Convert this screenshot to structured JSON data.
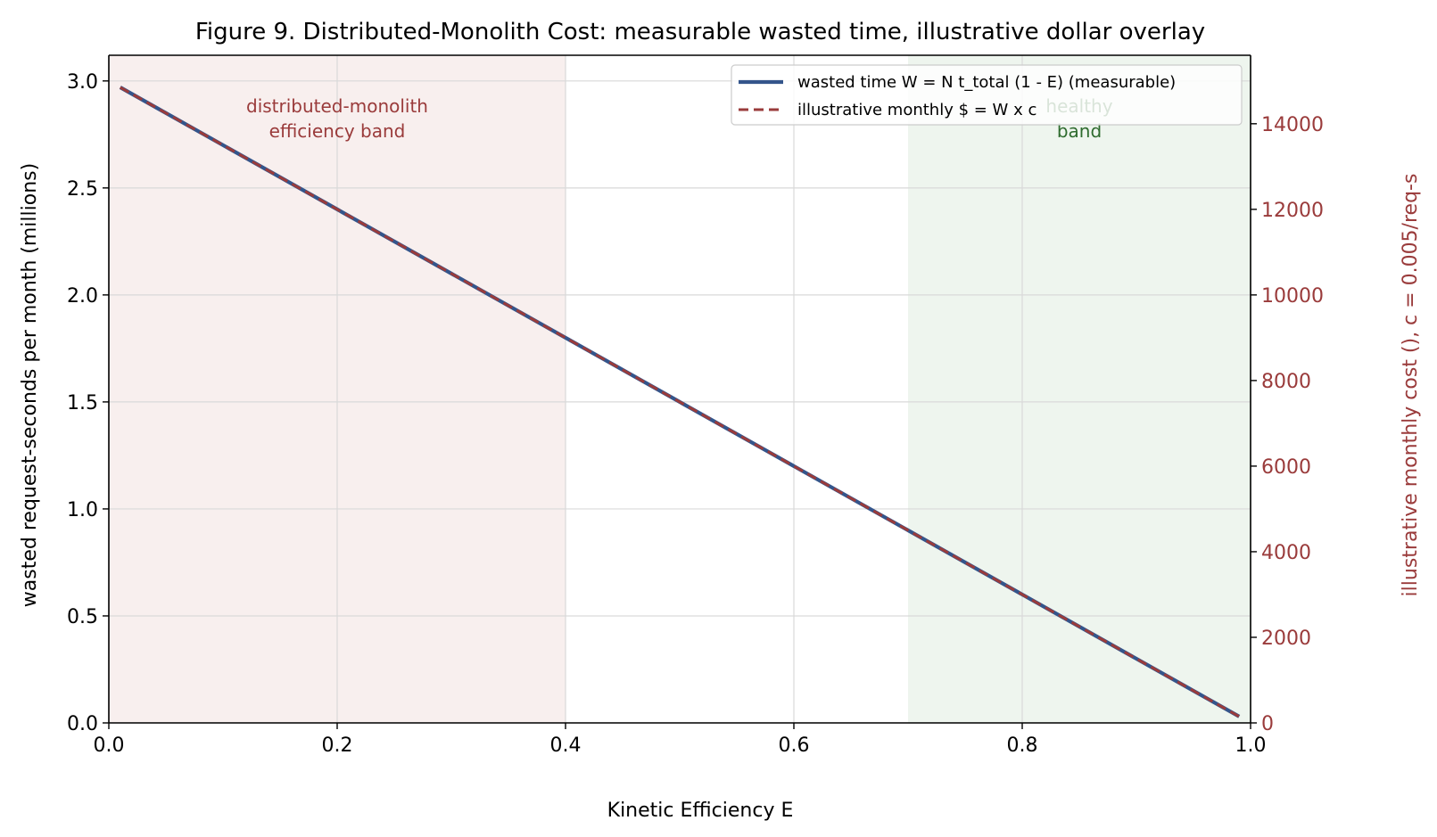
{
  "chart_data": {
    "type": "line",
    "title": "Figure 9. Distributed-Monolith Cost: measurable wasted time, illustrative dollar overlay",
    "xlabel": "Kinetic Efficiency E",
    "ylabel": "wasted request-seconds per month (millions)",
    "y2label": "illustrative monthly cost (), c = 0.005/req-s",
    "xlim": [
      0.0,
      1.0
    ],
    "ylim": [
      0.0,
      3.12
    ],
    "y2lim": [
      0,
      15600
    ],
    "xticks": [
      "0.0",
      "0.2",
      "0.4",
      "0.6",
      "0.8",
      "1.0"
    ],
    "yticks": [
      "0.0",
      "0.5",
      "1.0",
      "1.5",
      "2.0",
      "2.5",
      "3.0"
    ],
    "y2ticks": [
      "0",
      "2000",
      "4000",
      "6000",
      "8000",
      "10000",
      "12000",
      "14000"
    ],
    "grid": true,
    "legend_position": "top-right",
    "bands": [
      {
        "label_line1": "distributed-monolith",
        "label_line2": "efficiency band",
        "x": [
          0.0,
          0.4
        ],
        "color": "#f8efee",
        "text_color": "#9a3b3b"
      },
      {
        "label_line1": "healthy",
        "label_line2": "band",
        "x": [
          0.7,
          1.0
        ],
        "color": "#eef5ee",
        "text_color": "#2e6b2e"
      }
    ],
    "series": [
      {
        "name": "wasted time W = N t_total (1 - E)  (measurable)",
        "axis": "left",
        "color": "#34558b",
        "style": "solid",
        "x": [
          0.01,
          0.99
        ],
        "y": [
          2.97,
          0.03
        ]
      },
      {
        "name": "illustrative monthly $ = W x c",
        "axis": "right",
        "color": "#9a3b3b",
        "style": "dashed",
        "x": [
          0.01,
          0.99
        ],
        "y": [
          14850,
          150
        ]
      }
    ]
  }
}
